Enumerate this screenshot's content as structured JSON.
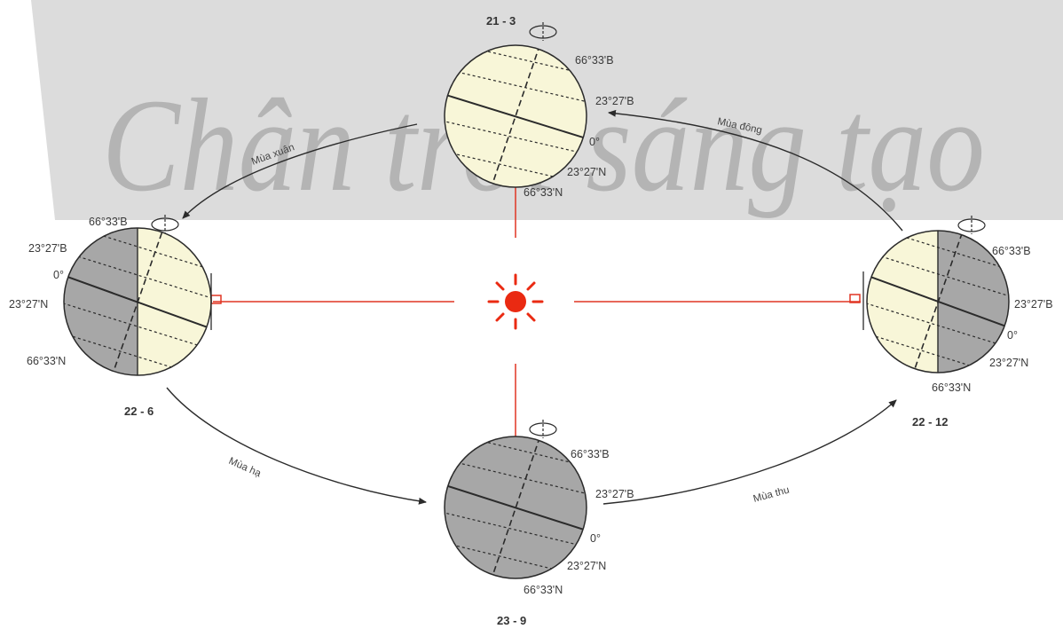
{
  "watermark": "Chân trời sáng tạo",
  "colors": {
    "day": "#f8f6d8",
    "night": "#a7a7a7",
    "sun": "#ea2a12",
    "ray": "#e03523",
    "orbit": "#2b2b2b",
    "watermark_band": "#dcdcdc",
    "watermark_text": "#b4b4b4"
  },
  "positions": {
    "mar21": {
      "date": "21 - 3",
      "labels": {
        "arctic": "66°33'B",
        "tropic_n": "23°27'B",
        "equator": "0°",
        "tropic_s": "23°27'N",
        "antarctic": "66°33'N"
      }
    },
    "jun22": {
      "date": "22 - 6",
      "labels": {
        "arctic": "66°33'B",
        "tropic_n": "23°27'B",
        "equator": "0°",
        "tropic_s": "23°27'N",
        "antarctic": "66°33'N"
      }
    },
    "sep23": {
      "date": "23 - 9",
      "labels": {
        "arctic": "66°33'B",
        "tropic_n": "23°27'B",
        "equator": "0°",
        "tropic_s": "23°27'N",
        "antarctic": "66°33'N"
      }
    },
    "dec22": {
      "date": "22 - 12",
      "labels": {
        "arctic": "66°33'B",
        "tropic_n": "23°27'B",
        "equator": "0°",
        "tropic_s": "23°27'N",
        "antarctic": "66°33'N"
      }
    }
  },
  "seasons": {
    "spring": "Mùa xuân",
    "summer": "Mùa hạ",
    "autumn": "Mùa thu",
    "winter": "Mùa đông"
  }
}
